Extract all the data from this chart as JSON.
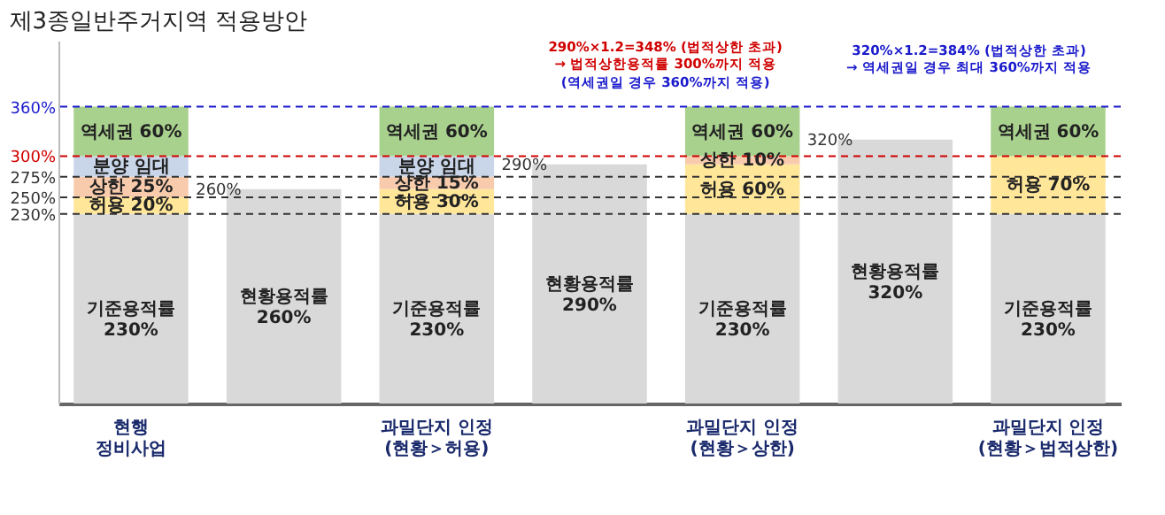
{
  "chart_data": {
    "type": "bar",
    "stacked": true,
    "title": "제3종일반주거지역 적용방안",
    "categories": [
      "현행\n정비사업",
      null,
      "과밀단지 인정\n(현황＞허용)",
      null,
      "과밀단지 인정\n(현황＞상한)",
      null,
      "과밀단지 인정\n(현황＞법적상한)"
    ],
    "series": [
      {
        "color": "#d9d9d9",
        "values": [
          230,
          260,
          230,
          290,
          230,
          320,
          230
        ],
        "value_labels": [
          "기준용적률\n230%",
          "현황용적률\n260%",
          "기준용적률\n230%",
          "현황용적률\n290%",
          "기준용적률\n230%",
          "현황용적률\n320%",
          "기준용적률\n230%"
        ]
      },
      {
        "color": "#ffe699",
        "values": [
          20,
          null,
          30,
          null,
          60,
          null,
          70
        ],
        "value_labels": [
          "허용 20%",
          null,
          "허용 30%",
          null,
          "허용 60%",
          null,
          "허용 70%"
        ]
      },
      {
        "color": "#f8cbad",
        "values": [
          25,
          null,
          15,
          null,
          10,
          null,
          null
        ],
        "value_labels": [
          "상한 25%",
          null,
          "상한 15%",
          null,
          "상한 10%",
          null,
          null
        ]
      },
      {
        "color": "#c9d6ea",
        "values": [
          25,
          null,
          25,
          null,
          null,
          null,
          null
        ],
        "value_labels": [
          "분양  임대",
          null,
          "분양  임대",
          null,
          null,
          null,
          null
        ]
      },
      {
        "color": "#a9d18e",
        "values": [
          60,
          null,
          60,
          null,
          60,
          null,
          60
        ],
        "value_labels": [
          "역세권 60%",
          null,
          "역세권 60%",
          null,
          "역세권 60%",
          null,
          "역세권 60%"
        ]
      }
    ],
    "ylim": [
      0,
      440
    ],
    "yticks": [
      {
        "value": 230,
        "label": "230%"
      },
      {
        "value": 250,
        "label": "250%"
      },
      {
        "value": 275,
        "label": "275%"
      },
      {
        "value": 300,
        "label": "300%"
      },
      {
        "value": 360,
        "label": "360%"
      }
    ],
    "grid": false,
    "ref_lines": [
      {
        "axis": "y",
        "value": 230,
        "color": "#333333",
        "line_style": "dashed"
      },
      {
        "axis": "y",
        "value": 250,
        "color": "#333333",
        "line_style": "dashed"
      },
      {
        "axis": "y",
        "value": 275,
        "color": "#333333",
        "line_style": "dashed"
      },
      {
        "axis": "y",
        "value": 300,
        "color": "#d00000",
        "line_style": "dashed"
      },
      {
        "axis": "y",
        "value": 360,
        "color": "#1a1acc",
        "line_style": "dashed"
      }
    ],
    "annotations": [
      "290%×1.2=348% (법적상한 초과)\n→ 법적상한용적률 300%까지 적용",
      "(역세권일 경우 360%까지 적용)",
      "320%×1.2=384% (법적상한 초과)\n→ 역세권일 경우 최대 360%까지 적용",
      "260%",
      "290%",
      "320%"
    ]
  }
}
